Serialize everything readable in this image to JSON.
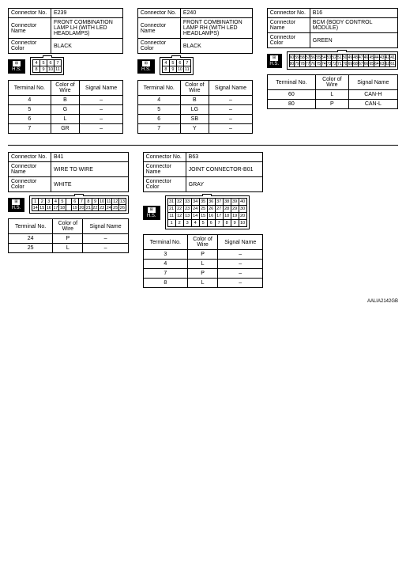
{
  "labels": {
    "connector_no": "Connector No.",
    "connector_name": "Connector Name",
    "connector_color": "Connector Color",
    "terminal_no": "Terminal No.",
    "color_of_wire": "Color of\nWire",
    "signal_name": "Signal Name",
    "hs": "H.S."
  },
  "connectors": {
    "e239": {
      "no": "E239",
      "name": "FRONT COMBINATION LAMP LH (WITH LED HEADLAMPS)",
      "color": "BLACK",
      "pins": [
        [
          "4",
          "5",
          "6",
          "7"
        ],
        [
          "8",
          "9",
          "10",
          "11"
        ]
      ],
      "terminals": [
        {
          "no": "4",
          "wire": "B",
          "signal": "–"
        },
        {
          "no": "5",
          "wire": "G",
          "signal": "–"
        },
        {
          "no": "6",
          "wire": "L",
          "signal": "–"
        },
        {
          "no": "7",
          "wire": "GR",
          "signal": "–"
        }
      ]
    },
    "e240": {
      "no": "E240",
      "name": "FRONT COMBINATION LAMP RH (WITH LED HEADLAMPS)",
      "color": "BLACK",
      "pins": [
        [
          "4",
          "5",
          "6",
          "7"
        ],
        [
          "8",
          "9",
          "10",
          "11"
        ]
      ],
      "terminals": [
        {
          "no": "4",
          "wire": "B",
          "signal": "–"
        },
        {
          "no": "5",
          "wire": "LG",
          "signal": "–"
        },
        {
          "no": "6",
          "wire": "SB",
          "signal": "–"
        },
        {
          "no": "7",
          "wire": "Y",
          "signal": "–"
        }
      ]
    },
    "b16": {
      "no": "B16",
      "name": "BCM (BODY CONTROL MODULE)",
      "color": "GREEN",
      "pins": [
        [
          "60",
          "59",
          "58",
          "57",
          "56",
          "55",
          "54",
          "53",
          "52",
          "51",
          "50",
          "49",
          "48",
          "47",
          "46",
          "45",
          "44",
          "43",
          "42",
          "41"
        ],
        [
          "80",
          "79",
          "78",
          "77",
          "76",
          "75",
          "74",
          "73",
          "72",
          "71",
          "70",
          "69",
          "68",
          "67",
          "66",
          "65",
          "64",
          "63",
          "62",
          "61"
        ]
      ],
      "terminals": [
        {
          "no": "60",
          "wire": "L",
          "signal": "CAN-H"
        },
        {
          "no": "80",
          "wire": "P",
          "signal": "CAN-L"
        }
      ]
    },
    "b41": {
      "no": "B41",
      "name": "WIRE TO WIRE",
      "color": "WHITE",
      "pins": [
        [
          "1",
          "2",
          "3",
          "4",
          "5",
          "",
          "6",
          "7",
          "8",
          "9",
          "10",
          "11",
          "12",
          "13"
        ],
        [
          "14",
          "15",
          "16",
          "17",
          "18",
          "",
          "19",
          "20",
          "21",
          "22",
          "23",
          "24",
          "25",
          "26"
        ]
      ],
      "terminals": [
        {
          "no": "24",
          "wire": "P",
          "signal": "–"
        },
        {
          "no": "25",
          "wire": "L",
          "signal": "–"
        }
      ]
    },
    "b63": {
      "no": "B63",
      "name": "JOINT CONNECTOR-B01",
      "color": "GRAY",
      "pins": [
        [
          "31",
          "32",
          "33",
          "34",
          "35",
          "36",
          "37",
          "38",
          "39",
          "40"
        ],
        [
          "21",
          "22",
          "23",
          "24",
          "25",
          "26",
          "27",
          "28",
          "29",
          "30"
        ],
        [
          "11",
          "12",
          "13",
          "14",
          "15",
          "16",
          "17",
          "18",
          "19",
          "20"
        ],
        [
          "1",
          "2",
          "3",
          "4",
          "5",
          "6",
          "7",
          "8",
          "9",
          "10"
        ]
      ],
      "terminals": [
        {
          "no": "3",
          "wire": "P",
          "signal": "–"
        },
        {
          "no": "4",
          "wire": "L",
          "signal": "–"
        },
        {
          "no": "7",
          "wire": "P",
          "signal": "–"
        },
        {
          "no": "8",
          "wire": "L",
          "signal": "–"
        }
      ]
    }
  },
  "docref": "AALIA2142GB"
}
